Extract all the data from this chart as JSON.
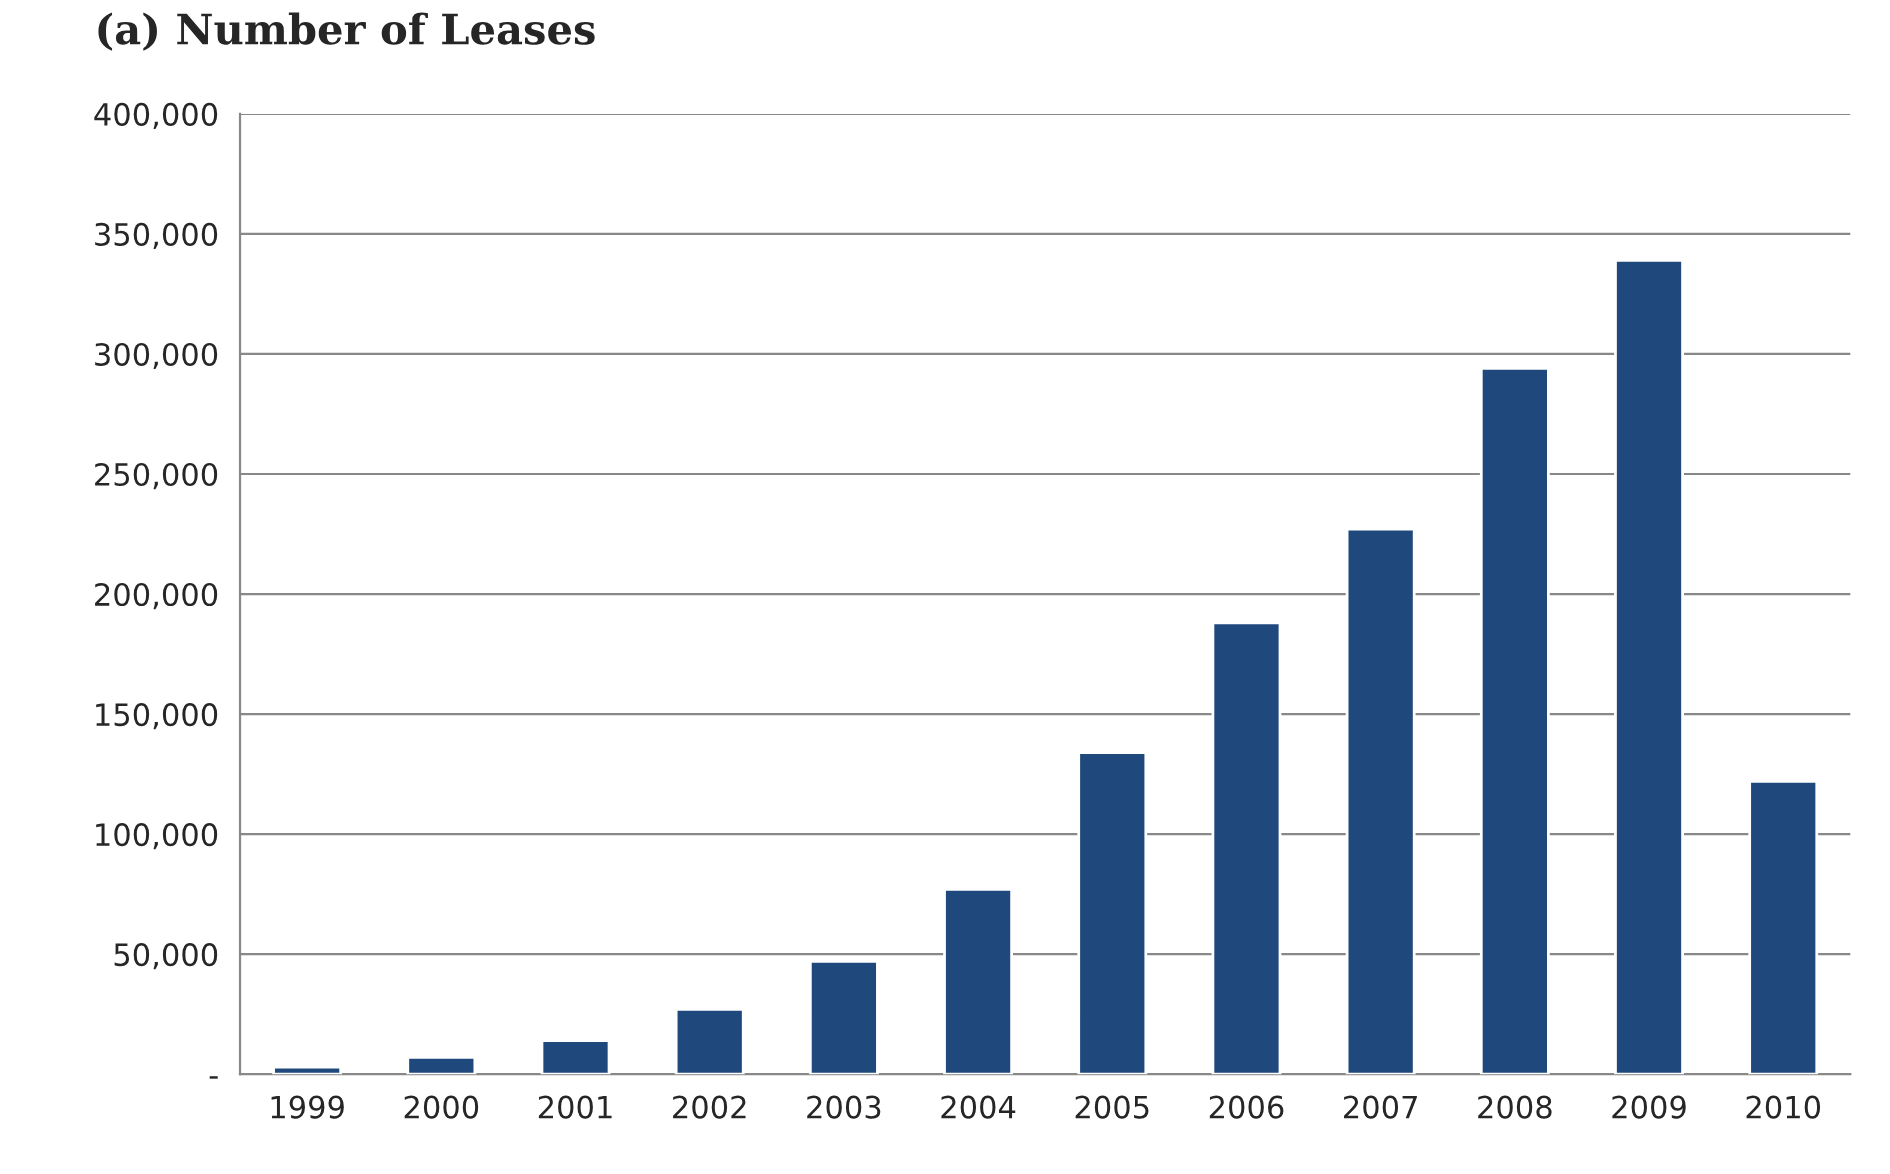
{
  "chart_data": {
    "type": "bar",
    "title": "(a) Number of Leases",
    "categories": [
      "1999",
      "2000",
      "2001",
      "2002",
      "2003",
      "2004",
      "2005",
      "2006",
      "2007",
      "2008",
      "2009",
      "2010"
    ],
    "values": [
      3000,
      7000,
      14000,
      27000,
      47000,
      77000,
      134000,
      188000,
      227000,
      294000,
      339000,
      122000
    ],
    "color": "#1f497d",
    "ylim": [
      0,
      400000
    ],
    "yticks": [
      {
        "value": 0,
        "label": "-"
      },
      {
        "value": 50000,
        "label": "50,000"
      },
      {
        "value": 100000,
        "label": "100,000"
      },
      {
        "value": 150000,
        "label": "150,000"
      },
      {
        "value": 200000,
        "label": "200,000"
      },
      {
        "value": 250000,
        "label": "250,000"
      },
      {
        "value": 300000,
        "label": "300,000"
      },
      {
        "value": 350000,
        "label": "350,000"
      },
      {
        "value": 400000,
        "label": "400,000"
      }
    ],
    "grid": "y"
  }
}
